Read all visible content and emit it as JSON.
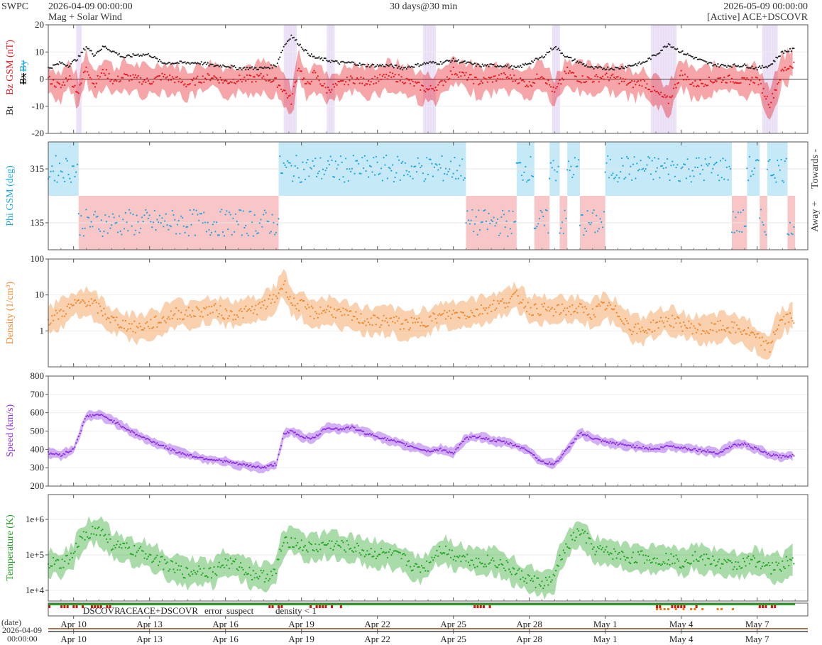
{
  "header": {
    "left": "SWPC",
    "start": "2026-04-09 00:00:00",
    "subtitle": "Mag + Solar Wind",
    "center": "30 days@30 min",
    "end": "2026-05-09 00:00:00",
    "source": "[Active] ACE+DSCOVR"
  },
  "colors": {
    "bt": "#222222",
    "bz": "#e8141c",
    "phi": "#1aa6dc",
    "phi_towards_fill": "#c6e9f8",
    "phi_away_fill": "#f9c6c8",
    "density": "#f0862a",
    "speed": "#8a2be2",
    "temperature": "#1fa31f",
    "bz_neg_fill": "#d9c8ef"
  },
  "legend": {
    "dscovr": "DSCOVR",
    "ace": "ACE",
    "both": "ACE+DSCOVR",
    "error": "error",
    "suspect": "suspect",
    "density_low": "density < 1",
    "dscovr_color": "#1a1ab0",
    "ace_color": "#22a322",
    "both_color": "#d01ad0",
    "error_color": "#e01010",
    "suspect_color": "#e8b400",
    "density_low_color": "#f07a10"
  },
  "date_label": "(date)",
  "date_start_date": "2026-04-09",
  "date_start_time": "00:00:00",
  "chart_data": [
    {
      "type": "line",
      "ylabel_parts": [
        "Bt",
        "Bz GSM (nT)",
        "Bx",
        "By"
      ],
      "ylim": [
        -20,
        20
      ],
      "yticks": [
        "20",
        "10",
        "0",
        "-10",
        "-20"
      ],
      "series": [
        {
          "name": "Bt",
          "x": [
            0,
            0.5,
            0.8,
            1.2,
            1.5,
            1.8,
            2.2,
            2.6,
            3,
            3.5,
            4,
            4.5,
            5,
            5.5,
            6,
            6.5,
            7,
            7.5,
            8,
            8.5,
            9,
            9.3,
            9.6,
            9.9,
            10.2,
            10.5,
            11,
            11.5,
            12,
            12.5,
            13,
            13.5,
            14,
            14.5,
            15,
            15.5,
            16,
            16.5,
            17,
            17.5,
            18,
            18.5,
            19,
            19.5,
            20,
            20.5,
            21,
            21.5,
            22,
            22.5,
            23,
            23.5,
            24,
            24.5,
            25,
            25.5,
            26,
            26.5,
            27,
            27.5,
            28,
            28.5,
            29,
            29.5
          ],
          "values": [
            4,
            6,
            5,
            8,
            12,
            9,
            12,
            10,
            8,
            9,
            9,
            6,
            6,
            6,
            6,
            5,
            5,
            4,
            4,
            4,
            5,
            12,
            16,
            13,
            10,
            8,
            7,
            6,
            6,
            5,
            5,
            5,
            4,
            5,
            6,
            6,
            7,
            6,
            5,
            5,
            5,
            4,
            6,
            8,
            12,
            8,
            6,
            4,
            4,
            4,
            5,
            6,
            9,
            13,
            10,
            8,
            6,
            5,
            5,
            5,
            4,
            5,
            10,
            11
          ]
        },
        {
          "name": "Bz",
          "x": [
            0,
            0.5,
            0.8,
            1.2,
            1.5,
            1.8,
            2.2,
            2.6,
            3,
            3.5,
            4,
            4.5,
            5,
            5.5,
            6,
            6.5,
            7,
            7.5,
            8,
            8.5,
            9,
            9.3,
            9.6,
            9.9,
            10.2,
            10.5,
            11,
            11.5,
            12,
            12.5,
            13,
            13.5,
            14,
            14.5,
            15,
            15.5,
            16,
            16.5,
            17,
            17.5,
            18,
            18.5,
            19,
            19.5,
            20,
            20.5,
            21,
            21.5,
            22,
            22.5,
            23,
            23.5,
            24,
            24.5,
            25,
            25.5,
            26,
            26.5,
            27,
            27.5,
            28,
            28.5,
            29,
            29.5
          ],
          "values": [
            0,
            -3,
            1,
            -5,
            5,
            -2,
            3,
            -1,
            1,
            0,
            -1,
            1,
            0,
            -2,
            0,
            1,
            -1,
            0,
            0,
            1,
            -1,
            -4,
            -8,
            5,
            -3,
            2,
            -4,
            -2,
            0,
            -1,
            0,
            1,
            0,
            -2,
            -4,
            -2,
            3,
            1,
            -1,
            0,
            1,
            0,
            -2,
            2,
            -5,
            3,
            0,
            0,
            1,
            0,
            -2,
            -1,
            -5,
            -8,
            2,
            -2,
            -1,
            0,
            0,
            -1,
            0,
            -9,
            3,
            6
          ]
        }
      ]
    },
    {
      "type": "scatter",
      "ylabel": "Phi GSM (deg)",
      "right_labels": [
        "Towards -",
        "Away +"
      ],
      "ylim": [
        45,
        405
      ],
      "yticks": [
        "315",
        "135"
      ],
      "towards_intervals": [
        [
          0,
          1.2
        ],
        [
          9.1,
          16.5
        ],
        [
          18.5,
          19.2
        ],
        [
          19.8,
          20.2
        ],
        [
          20.5,
          21
        ],
        [
          22,
          27
        ],
        [
          27.6,
          28.1
        ],
        [
          28.4,
          29.2
        ]
      ],
      "away_intervals": [
        [
          1.2,
          9.1
        ],
        [
          16.5,
          18.5
        ],
        [
          19.2,
          19.8
        ],
        [
          20.2,
          20.5
        ],
        [
          21,
          22
        ],
        [
          27,
          27.6
        ],
        [
          28.1,
          28.4
        ],
        [
          29.2,
          29.5
        ]
      ]
    },
    {
      "type": "line",
      "ylabel": "Density (1/cm³)",
      "scale": "log",
      "ylim": [
        0.1,
        100
      ],
      "yticks": [
        "100",
        "10",
        "1"
      ],
      "series": [
        {
          "name": "Density",
          "x": [
            0,
            0.5,
            1,
            1.5,
            2,
            2.5,
            3,
            3.5,
            4,
            4.5,
            5,
            5.5,
            6,
            6.5,
            7,
            7.5,
            8,
            8.5,
            9,
            9.3,
            9.6,
            10,
            10.5,
            11,
            11.5,
            12,
            12.5,
            13,
            13.5,
            14,
            14.5,
            15,
            15.5,
            16,
            16.5,
            17,
            17.5,
            18,
            18.5,
            19,
            19.5,
            20,
            20.5,
            21,
            21.5,
            22,
            22.5,
            23,
            23.5,
            24,
            24.5,
            25,
            25.5,
            26,
            26.5,
            27,
            27.5,
            28,
            28.5,
            29,
            29.5
          ],
          "values": [
            2,
            3,
            5,
            7,
            4,
            2,
            1.5,
            1.2,
            1.5,
            2,
            3,
            3,
            3.5,
            4,
            3,
            3,
            3.5,
            5,
            8,
            20,
            6,
            5,
            3,
            4,
            3,
            2.5,
            2,
            1.8,
            2,
            1.5,
            1.6,
            2,
            2.5,
            3,
            3,
            3.5,
            5,
            6,
            9,
            4,
            4,
            3.5,
            4,
            4,
            3,
            5,
            3,
            1.2,
            1,
            1.5,
            2,
            1.5,
            1.2,
            1,
            1.3,
            1.2,
            1,
            0.6,
            0.3,
            2,
            2.5
          ]
        }
      ]
    },
    {
      "type": "line",
      "ylabel": "Speed (km/s)",
      "ylim": [
        200,
        800
      ],
      "yticks": [
        "800",
        "700",
        "600",
        "500",
        "400",
        "300",
        "200"
      ],
      "series": [
        {
          "name": "Speed",
          "x": [
            0,
            0.5,
            1,
            1.5,
            2,
            2.5,
            3,
            3.5,
            4,
            4.5,
            5,
            5.5,
            6,
            6.5,
            7,
            7.5,
            8,
            8.5,
            9,
            9.3,
            9.6,
            10,
            10.5,
            11,
            11.5,
            12,
            12.5,
            13,
            13.5,
            14,
            14.5,
            15,
            15.5,
            16,
            16.5,
            17,
            17.5,
            18,
            18.5,
            19,
            19.5,
            20,
            20.5,
            21,
            21.5,
            22,
            22.5,
            23,
            23.5,
            24,
            24.5,
            25,
            25.5,
            26,
            26.5,
            27,
            27.5,
            28,
            28.5,
            29,
            29.5
          ],
          "values": [
            380,
            370,
            400,
            580,
            590,
            560,
            520,
            480,
            450,
            420,
            390,
            370,
            355,
            345,
            335,
            320,
            310,
            300,
            320,
            480,
            500,
            470,
            460,
            520,
            510,
            520,
            490,
            470,
            450,
            430,
            410,
            390,
            400,
            380,
            460,
            470,
            450,
            440,
            420,
            390,
            330,
            320,
            400,
            490,
            460,
            440,
            430,
            420,
            410,
            400,
            420,
            410,
            400,
            390,
            380,
            420,
            430,
            400,
            370,
            360,
            370
          ]
        }
      ]
    },
    {
      "type": "line",
      "ylabel": "Temperature (K)",
      "scale": "log",
      "ylim": [
        5000,
        5000000
      ],
      "yticks": [
        "1e+6",
        "1e+5",
        "1e+4"
      ],
      "series": [
        {
          "name": "Temperature",
          "x": [
            0,
            0.5,
            1,
            1.5,
            2,
            2.5,
            3,
            3.5,
            4,
            4.5,
            5,
            5.5,
            6,
            6.5,
            7,
            7.5,
            8,
            8.5,
            9,
            9.3,
            9.6,
            10,
            10.5,
            11,
            11.5,
            12,
            12.5,
            13,
            13.5,
            14,
            14.5,
            15,
            15.5,
            16,
            16.5,
            17,
            17.5,
            18,
            18.5,
            19,
            19.5,
            20,
            20.5,
            21,
            21.5,
            22,
            22.5,
            23,
            23.5,
            24,
            24.5,
            25,
            25.5,
            26,
            26.5,
            27,
            27.5,
            28,
            28.5,
            29,
            29.5
          ],
          "values": [
            60000,
            50000,
            90000,
            400000,
            500000,
            200000,
            150000,
            120000,
            100000,
            60000,
            40000,
            30000,
            40000,
            30000,
            60000,
            50000,
            30000,
            25000,
            30000,
            200000,
            250000,
            180000,
            150000,
            200000,
            180000,
            160000,
            120000,
            110000,
            100000,
            80000,
            40000,
            50000,
            150000,
            100000,
            80000,
            60000,
            70000,
            50000,
            30000,
            20000,
            15000,
            20000,
            150000,
            450000,
            150000,
            120000,
            100000,
            80000,
            90000,
            70000,
            80000,
            60000,
            90000,
            70000,
            60000,
            50000,
            60000,
            70000,
            40000,
            50000,
            80000
          ]
        }
      ]
    },
    {
      "type": "bar",
      "name": "source and quality flags",
      "error_intervals": [
        [
          0,
          2.6
        ],
        [
          8.7,
          9.3
        ],
        [
          10.2,
          11.7
        ],
        [
          16.8,
          17.5
        ],
        [
          21.4,
          21.6
        ],
        [
          24,
          26
        ],
        [
          27.7,
          29
        ]
      ]
    }
  ],
  "x_axis": {
    "range": [
      0,
      30
    ],
    "ticks": [
      {
        "x": 1,
        "label": "Apr 10"
      },
      {
        "x": 4,
        "label": "Apr 13"
      },
      {
        "x": 7,
        "label": "Apr 16"
      },
      {
        "x": 10,
        "label": "Apr 19"
      },
      {
        "x": 13,
        "label": "Apr 22"
      },
      {
        "x": 16,
        "label": "Apr 25"
      },
      {
        "x": 19,
        "label": "Apr 28"
      },
      {
        "x": 22,
        "label": "May 1"
      },
      {
        "x": 25,
        "label": "May 4"
      },
      {
        "x": 28,
        "label": "May 7"
      }
    ]
  }
}
